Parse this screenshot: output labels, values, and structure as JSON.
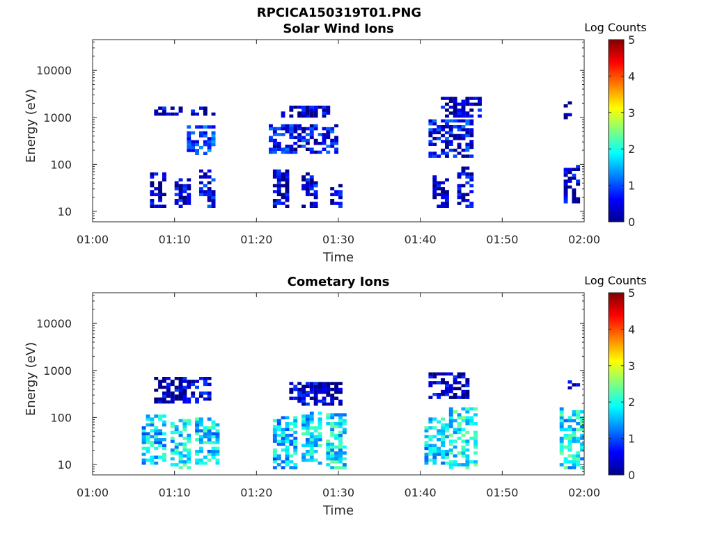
{
  "figure_title": "RPCICA150319T01.PNG",
  "colorbar": {
    "label": "Log Counts",
    "ticks": [
      "0",
      "1",
      "2",
      "3",
      "4",
      "5"
    ],
    "range": [
      0,
      5
    ],
    "colormap": "jet"
  },
  "chart_data": [
    {
      "type": "heatmap",
      "title": "Solar Wind Ions",
      "xlabel": "Time",
      "ylabel": "Energy (eV)",
      "xticks": [
        "01:00",
        "01:10",
        "01:20",
        "01:30",
        "01:40",
        "01:50",
        "02:00"
      ],
      "xlim_minutes": [
        0,
        60
      ],
      "yticks": [
        "10",
        "100",
        "1000",
        "10000"
      ],
      "ylim": [
        6,
        45000
      ],
      "yscale": "log",
      "colorbar_label": "Log Counts",
      "clim": [
        0,
        5
      ],
      "bursts": [
        {
          "t": [
            7.0,
            9.0
          ],
          "e": [
            12,
            60
          ],
          "level": 0.2
        },
        {
          "t": [
            10.0,
            11.8
          ],
          "e": [
            12,
            45
          ],
          "level": 0.35
        },
        {
          "t": [
            13.0,
            15.0
          ],
          "e": [
            12,
            70
          ],
          "level": 0.5
        },
        {
          "t": [
            11.5,
            15.0
          ],
          "e": [
            160,
            650
          ],
          "level": 0.8
        },
        {
          "t": [
            7.5,
            15.0
          ],
          "e": [
            1100,
            1500
          ],
          "level": 0.3
        },
        {
          "t": [
            22.0,
            24.0
          ],
          "e": [
            12,
            70
          ],
          "level": 0.35
        },
        {
          "t": [
            25.5,
            27.5
          ],
          "e": [
            12,
            65
          ],
          "level": 0.45
        },
        {
          "t": [
            29.0,
            30.5
          ],
          "e": [
            12,
            35
          ],
          "level": 0.3
        },
        {
          "t": [
            21.5,
            30.0
          ],
          "e": [
            170,
            700
          ],
          "level": 0.6
        },
        {
          "t": [
            23.0,
            29.0
          ],
          "e": [
            1000,
            1600
          ],
          "level": 0.3
        },
        {
          "t": [
            41.5,
            43.5
          ],
          "e": [
            12,
            55
          ],
          "level": 0.3
        },
        {
          "t": [
            44.5,
            46.5
          ],
          "e": [
            12,
            80
          ],
          "level": 0.35
        },
        {
          "t": [
            41.0,
            46.5
          ],
          "e": [
            140,
            800
          ],
          "level": 0.6
        },
        {
          "t": [
            42.5,
            47.5
          ],
          "e": [
            1000,
            2500
          ],
          "level": 0.3
        },
        {
          "t": [
            57.5,
            59.5
          ],
          "e": [
            15,
            90
          ],
          "level": 0.35
        },
        {
          "t": [
            57.5,
            58.5
          ],
          "e": [
            800,
            2400
          ],
          "level": 0.2
        }
      ]
    },
    {
      "type": "heatmap",
      "title": "Cometary Ions",
      "xlabel": "Time",
      "ylabel": "Energy (eV)",
      "xticks": [
        "01:00",
        "01:10",
        "01:20",
        "01:30",
        "01:40",
        "01:50",
        "02:00"
      ],
      "xlim_minutes": [
        0,
        60
      ],
      "yticks": [
        "10",
        "100",
        "1000",
        "10000"
      ],
      "ylim": [
        6,
        45000
      ],
      "yscale": "log",
      "colorbar_label": "Log Counts",
      "clim": [
        0,
        5
      ],
      "bursts": [
        {
          "t": [
            6.0,
            9.0
          ],
          "e": [
            10,
            110
          ],
          "level": 1.6
        },
        {
          "t": [
            9.5,
            12.0
          ],
          "e": [
            8,
            90
          ],
          "level": 1.8
        },
        {
          "t": [
            12.5,
            15.5
          ],
          "e": [
            10,
            100
          ],
          "level": 1.7
        },
        {
          "t": [
            7.5,
            14.5
          ],
          "e": [
            200,
            700
          ],
          "level": 0.3
        },
        {
          "t": [
            22.0,
            25.0
          ],
          "e": [
            8,
            100
          ],
          "level": 1.6
        },
        {
          "t": [
            25.5,
            28.0
          ],
          "e": [
            10,
            120
          ],
          "level": 1.7
        },
        {
          "t": [
            28.5,
            31.0
          ],
          "e": [
            8,
            120
          ],
          "level": 1.8
        },
        {
          "t": [
            24.0,
            30.5
          ],
          "e": [
            180,
            520
          ],
          "level": 0.3
        },
        {
          "t": [
            40.5,
            43.5
          ],
          "e": [
            10,
            100
          ],
          "level": 1.7
        },
        {
          "t": [
            43.5,
            47.0
          ],
          "e": [
            8,
            160
          ],
          "level": 1.9
        },
        {
          "t": [
            41.0,
            46.0
          ],
          "e": [
            250,
            800
          ],
          "level": 0.3
        },
        {
          "t": [
            57.0,
            60.0
          ],
          "e": [
            8,
            150
          ],
          "level": 1.8
        },
        {
          "t": [
            58.0,
            59.5
          ],
          "e": [
            400,
            600
          ],
          "level": 0.3
        }
      ]
    }
  ]
}
